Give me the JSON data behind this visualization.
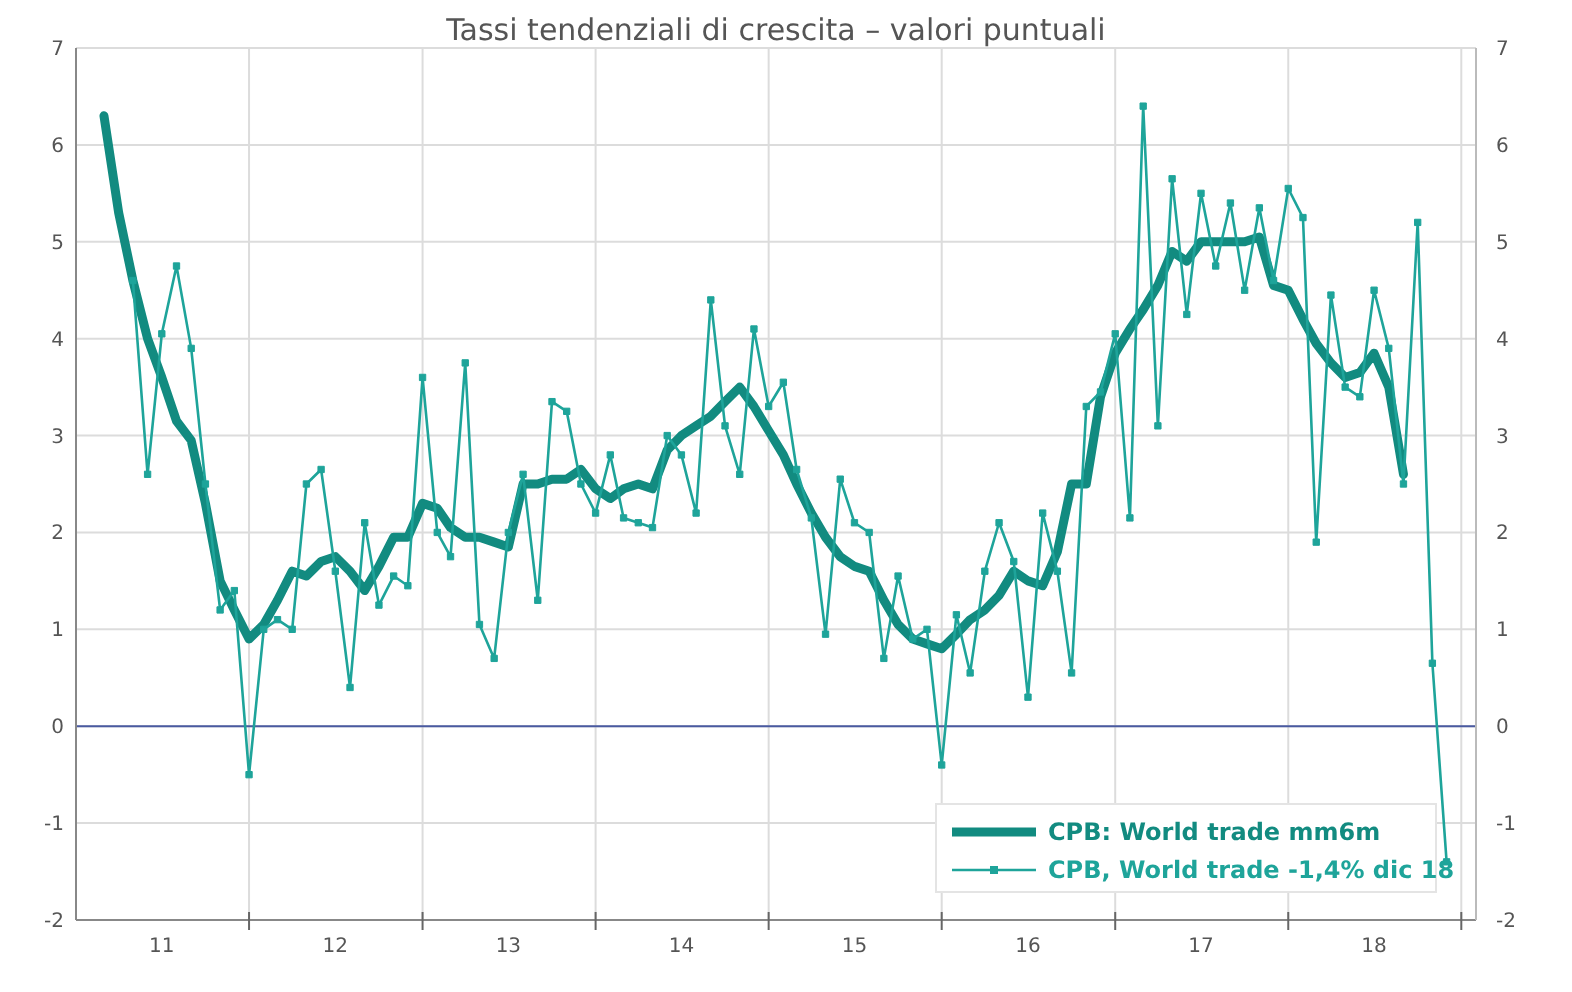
{
  "chart_data": {
    "type": "line",
    "title": "Tassi tendenziali di crescita – valori puntuali",
    "x": [
      "2011-03",
      "2011-04",
      "2011-05",
      "2011-06",
      "2011-07",
      "2011-08",
      "2011-09",
      "2011-10",
      "2011-11",
      "2011-12",
      "2012-01",
      "2012-02",
      "2012-03",
      "2012-04",
      "2012-05",
      "2012-06",
      "2012-07",
      "2012-08",
      "2012-09",
      "2012-10",
      "2012-11",
      "2012-12",
      "2013-01",
      "2013-02",
      "2013-03",
      "2013-04",
      "2013-05",
      "2013-06",
      "2013-07",
      "2013-08",
      "2013-09",
      "2013-10",
      "2013-11",
      "2013-12",
      "2014-01",
      "2014-02",
      "2014-03",
      "2014-04",
      "2014-05",
      "2014-06",
      "2014-07",
      "2014-08",
      "2014-09",
      "2014-10",
      "2014-11",
      "2014-12",
      "2015-01",
      "2015-02",
      "2015-03",
      "2015-04",
      "2015-05",
      "2015-06",
      "2015-07",
      "2015-08",
      "2015-09",
      "2015-10",
      "2015-11",
      "2015-12",
      "2016-01",
      "2016-02",
      "2016-03",
      "2016-04",
      "2016-05",
      "2016-06",
      "2016-07",
      "2016-08",
      "2016-09",
      "2016-10",
      "2016-11",
      "2016-12",
      "2017-01",
      "2017-02",
      "2017-03",
      "2017-04",
      "2017-05",
      "2017-06",
      "2017-07",
      "2017-08",
      "2017-09",
      "2017-10",
      "2017-11",
      "2017-12",
      "2018-01",
      "2018-02",
      "2018-03",
      "2018-04",
      "2018-05",
      "2018-06",
      "2018-07",
      "2018-08",
      "2018-09"
    ],
    "series": [
      {
        "name": "CPB: World trade mm6m",
        "color": "#128b80",
        "marker": "none",
        "values": [
          6.3,
          5.3,
          4.6,
          4.0,
          3.6,
          3.15,
          2.95,
          2.3,
          1.5,
          1.2,
          0.9,
          1.05,
          1.3,
          1.6,
          1.55,
          1.7,
          1.75,
          1.6,
          1.4,
          1.65,
          1.95,
          1.95,
          2.3,
          2.25,
          2.05,
          1.95,
          1.95,
          1.9,
          1.85,
          2.5,
          2.5,
          2.55,
          2.55,
          2.65,
          2.45,
          2.35,
          2.45,
          2.5,
          2.45,
          2.85,
          3.0,
          3.1,
          3.2,
          3.35,
          3.5,
          3.3,
          3.05,
          2.8,
          2.5,
          2.2,
          1.95,
          1.75,
          1.65,
          1.6,
          1.3,
          1.05,
          0.9,
          0.85,
          0.8,
          0.95,
          1.1,
          1.2,
          1.35,
          1.6,
          1.5,
          1.45,
          1.8,
          2.5,
          2.5,
          3.4,
          3.85,
          4.1,
          4.3,
          4.55,
          4.9,
          4.8,
          5.0,
          5.0,
          5.0,
          5.0,
          5.05,
          4.55,
          4.5,
          4.2,
          3.95,
          3.75,
          3.6,
          3.65,
          3.85,
          3.5,
          2.6
        ]
      },
      {
        "name": "CPB, World trade -1,4% dic 18",
        "color": "#1ea49a",
        "marker": "square",
        "x": [
          "2011-05",
          "2011-06",
          "2011-07",
          "2011-08",
          "2011-09",
          "2011-10",
          "2011-11",
          "2011-12",
          "2012-01",
          "2012-02",
          "2012-03",
          "2012-04",
          "2012-05",
          "2012-06",
          "2012-07",
          "2012-08",
          "2012-09",
          "2012-10",
          "2012-11",
          "2012-12",
          "2013-01",
          "2013-02",
          "2013-03",
          "2013-04",
          "2013-05",
          "2013-06",
          "2013-07",
          "2013-08",
          "2013-09",
          "2013-10",
          "2013-11",
          "2013-12",
          "2014-01",
          "2014-02",
          "2014-03",
          "2014-04",
          "2014-05",
          "2014-06",
          "2014-07",
          "2014-08",
          "2014-09",
          "2014-10",
          "2014-11",
          "2014-12",
          "2015-01",
          "2015-02",
          "2015-03",
          "2015-04",
          "2015-05",
          "2015-06",
          "2015-07",
          "2015-08",
          "2015-09",
          "2015-10",
          "2015-11",
          "2015-12",
          "2016-01",
          "2016-02",
          "2016-03",
          "2016-04",
          "2016-05",
          "2016-06",
          "2016-07",
          "2016-08",
          "2016-09",
          "2016-10",
          "2016-11",
          "2016-12",
          "2017-01",
          "2017-02",
          "2017-03",
          "2017-04",
          "2017-05",
          "2017-06",
          "2017-07",
          "2017-08",
          "2017-09",
          "2017-10",
          "2017-11",
          "2017-12",
          "2018-01",
          "2018-02",
          "2018-03",
          "2018-04",
          "2018-05",
          "2018-06",
          "2018-07",
          "2018-08",
          "2018-09",
          "2018-10",
          "2018-11",
          "2018-12"
        ],
        "values": [
          4.6,
          2.6,
          4.05,
          4.75,
          3.9,
          2.5,
          1.2,
          1.4,
          -0.5,
          1.0,
          1.1,
          1.0,
          2.5,
          2.65,
          1.6,
          0.4,
          2.1,
          1.25,
          1.55,
          1.45,
          3.6,
          2.0,
          1.75,
          3.75,
          1.05,
          0.7,
          2.0,
          2.6,
          1.3,
          3.35,
          3.25,
          2.5,
          2.2,
          2.8,
          2.15,
          2.1,
          2.05,
          3.0,
          2.8,
          2.2,
          4.4,
          3.1,
          2.6,
          4.1,
          3.3,
          3.55,
          2.65,
          2.15,
          0.95,
          2.55,
          2.1,
          2.0,
          0.7,
          1.55,
          0.9,
          1.0,
          -0.4,
          1.15,
          0.55,
          1.6,
          2.1,
          1.7,
          0.3,
          2.2,
          1.6,
          0.55,
          3.3,
          3.45,
          4.05,
          2.15,
          6.4,
          3.1,
          5.65,
          4.25,
          5.5,
          4.75,
          5.4,
          4.5,
          5.35,
          4.6,
          5.55,
          5.25,
          1.9,
          4.45,
          3.5,
          3.4,
          4.5,
          3.9,
          2.5,
          5.2,
          0.65,
          -1.4
        ]
      }
    ],
    "xlim": [
      "2011-01-01",
      "2019-02-01"
    ],
    "xticks": [
      {
        "value": "2011-07-01",
        "label": "11"
      },
      {
        "value": "2012-07-01",
        "label": "12"
      },
      {
        "value": "2013-07-01",
        "label": "13"
      },
      {
        "value": "2014-07-01",
        "label": "14"
      },
      {
        "value": "2015-07-01",
        "label": "15"
      },
      {
        "value": "2016-07-01",
        "label": "16"
      },
      {
        "value": "2017-07-01",
        "label": "17"
      },
      {
        "value": "2018-07-01",
        "label": "18"
      },
      {
        "value": "2012-01-01",
        "label": null
      },
      {
        "value": "2013-01-01",
        "label": null
      },
      {
        "value": "2014-01-01",
        "label": null
      },
      {
        "value": "2015-01-01",
        "label": null
      },
      {
        "value": "2016-01-01",
        "label": null
      },
      {
        "value": "2017-01-01",
        "label": null
      },
      {
        "value": "2018-01-01",
        "label": null
      },
      {
        "value": "2019-01-01",
        "label": null
      }
    ],
    "ylim": [
      -2,
      7
    ],
    "yticks": [
      -2,
      -1,
      0,
      1,
      2,
      3,
      4,
      5,
      6,
      7
    ],
    "y2lim": [
      -2,
      7
    ],
    "y2ticks": [
      -2,
      -1,
      0,
      1,
      2,
      3,
      4,
      5,
      6,
      7
    ],
    "ref_lines": [
      {
        "axis": "y",
        "value": 0,
        "color": "#4a5aa0"
      }
    ],
    "grid": true,
    "legend": "bottom right",
    "line_style": "solid"
  }
}
